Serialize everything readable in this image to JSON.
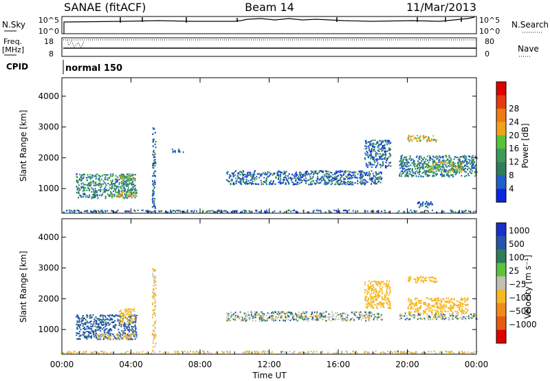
{
  "header": {
    "title_left": "SANAE (fitACF)",
    "title_center": "Beam 14",
    "title_right": "11/Mar/2013"
  },
  "top_panels": {
    "nsky_label": "N.Sky",
    "nsky_ticks": [
      "10^5",
      "10^0"
    ],
    "nsearch_label": "N.Search",
    "freq_label": "Freq.",
    "freq_unit": "[MHz]",
    "freq_ticks": [
      "18",
      "8"
    ],
    "nave_label": "Nave",
    "nave_ticks": [
      "80",
      "0"
    ],
    "cpid_label": "CPID",
    "cpid_value": "normal 150"
  },
  "colors": {
    "power": [
      "#0b25e4",
      "#1f5fc8",
      "#2e7d5a",
      "#3f9a58",
      "#59c23a",
      "#f0a21a",
      "#f07a14",
      "#e83a10",
      "#e00000"
    ],
    "velocity_scale": [
      "#1a2ec8",
      "#2456a8",
      "#2e7d5a",
      "#5cc43a",
      "#c0c0b4",
      "#f5b820",
      "#f08a18",
      "#e85a14",
      "#e00000"
    ],
    "velocity_grey": "#bdbdb0"
  },
  "chart_data": [
    {
      "type": "heatmap",
      "title": "",
      "xlabel": "Time UT",
      "ylabel": "Slant Range [km]",
      "xlim": [
        "00:00",
        "24:00"
      ],
      "x_ticks": [
        "00:00",
        "04:00",
        "08:00",
        "12:00",
        "16:00",
        "20:00",
        "00:00"
      ],
      "ylim": [
        200,
        4600
      ],
      "y_ticks": [
        1000,
        2000,
        3000,
        4000
      ],
      "colorbar": {
        "label": "Power [dB]",
        "ticks": [
          "4",
          "8",
          "12",
          "16",
          "20",
          "24",
          "28"
        ],
        "range": [
          0,
          30
        ]
      },
      "regions": [
        {
          "t0": 0.8,
          "t1": 4.3,
          "r0": 700,
          "r1": 1500,
          "value": 9
        },
        {
          "t0": 2.8,
          "t1": 4.2,
          "r0": 750,
          "r1": 900,
          "value": 18
        },
        {
          "t0": 3.3,
          "t1": 4.2,
          "r0": 1150,
          "r1": 1450,
          "value": 14
        },
        {
          "t0": 9.5,
          "t1": 18.5,
          "r0": 1150,
          "r1": 1600,
          "value": 6
        },
        {
          "t0": 17.5,
          "t1": 19.0,
          "r0": 1700,
          "r1": 2600,
          "value": 6
        },
        {
          "t0": 20.0,
          "t1": 21.7,
          "r0": 2550,
          "r1": 2750,
          "value": 18
        },
        {
          "t0": 19.5,
          "t1": 24.0,
          "r0": 1400,
          "r1": 2100,
          "value": 8
        },
        {
          "t0": 21.0,
          "t1": 23.2,
          "r0": 1550,
          "r1": 1900,
          "value": 14
        },
        {
          "t0": 20.5,
          "t1": 21.5,
          "r0": 400,
          "r1": 600,
          "value": 6
        },
        {
          "t0": 0.0,
          "t1": 24.0,
          "r0": 250,
          "r1": 320,
          "value": 6
        },
        {
          "t0": 5.2,
          "t1": 5.4,
          "r0": 300,
          "r1": 3000,
          "value": 6
        },
        {
          "t0": 6.2,
          "t1": 7.0,
          "r0": 2200,
          "r1": 2300,
          "value": 5
        }
      ]
    },
    {
      "type": "heatmap",
      "title": "",
      "xlabel": "Time UT",
      "ylabel": "Slant Range [km]",
      "xlim": [
        "00:00",
        "24:00"
      ],
      "x_ticks": [
        "00:00",
        "04:00",
        "08:00",
        "12:00",
        "16:00",
        "20:00",
        "00:00"
      ],
      "ylim": [
        200,
        4600
      ],
      "y_ticks": [
        1000,
        2000,
        3000,
        4000
      ],
      "colorbar": {
        "label": "Velocity [m s⁻¹]",
        "ticks": [
          "1000",
          "500",
          "100",
          "25",
          "−25",
          "−100",
          "−500",
          "−1000"
        ]
      },
      "regions": [
        {
          "t0": 0.8,
          "t1": 4.3,
          "r0": 700,
          "r1": 1500,
          "value": 200
        },
        {
          "t0": 2.0,
          "t1": 4.2,
          "r0": 700,
          "r1": 900,
          "value": -150
        },
        {
          "t0": 3.3,
          "t1": 4.2,
          "r0": 1200,
          "r1": 1700,
          "value": -200
        },
        {
          "t0": 9.5,
          "t1": 18.5,
          "r0": 1300,
          "r1": 1600,
          "value": 0
        },
        {
          "t0": 17.5,
          "t1": 19.0,
          "r0": 1700,
          "r1": 2600,
          "value": -300
        },
        {
          "t0": 20.0,
          "t1": 21.7,
          "r0": 2550,
          "r1": 2750,
          "value": -300
        },
        {
          "t0": 20.0,
          "t1": 23.5,
          "r0": 1550,
          "r1": 2050,
          "value": -300
        },
        {
          "t0": 19.5,
          "t1": 24.0,
          "r0": 1350,
          "r1": 1550,
          "value": 0
        },
        {
          "t0": 0.0,
          "t1": 24.0,
          "r0": 250,
          "r1": 320,
          "value": -120
        },
        {
          "t0": 5.2,
          "t1": 5.4,
          "r0": 300,
          "r1": 3000,
          "value": -150
        }
      ]
    }
  ]
}
